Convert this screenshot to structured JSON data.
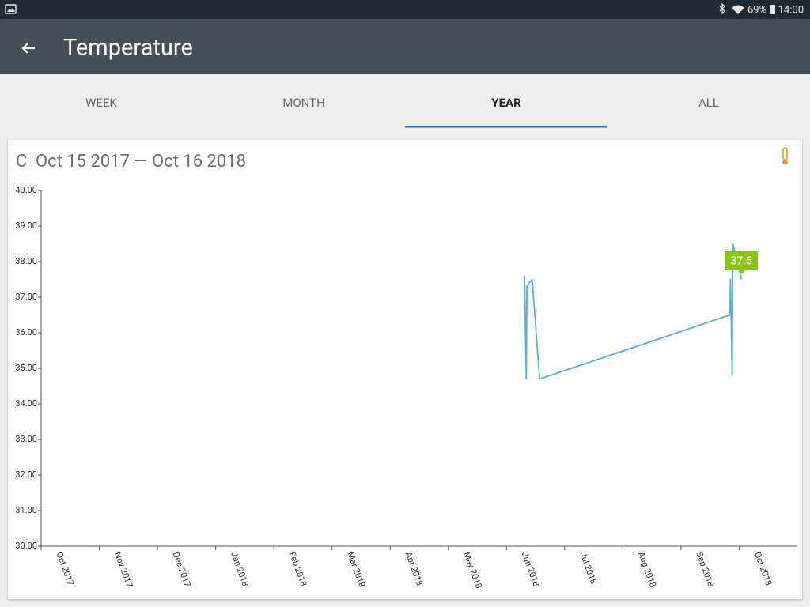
{
  "status_bar": {
    "battery": "69%",
    "time": "14:00"
  },
  "app_bar": {
    "title": "Temperature"
  },
  "tabs": [
    "WEEK",
    "MONTH",
    "YEAR",
    "ALL"
  ],
  "selected_tab": 2,
  "card": {
    "unit": "C",
    "range": "Oct 15 2017 — Oct 16 2018"
  },
  "tooltip": 37.5,
  "chart_data": {
    "type": "line",
    "x": [
      8.31,
      8.34,
      8.35,
      8.39,
      8.44,
      8.57,
      11.84,
      11.85,
      11.88,
      11.89,
      11.93,
      12.04
    ],
    "series": [
      {
        "color": "#5aafd6",
        "values": [
          37.6,
          34.7,
          37.3,
          37.4,
          37.5,
          34.7,
          36.5,
          37.5,
          34.8,
          38.5,
          38.25,
          37.5
        ]
      }
    ],
    "xlim": [
      0,
      13
    ],
    "xticks": [
      {
        "value": 0,
        "label": "Oct 2017"
      },
      {
        "value": 1,
        "label": "Nov 2017"
      },
      {
        "value": 2,
        "label": "Dec 2017"
      },
      {
        "value": 3,
        "label": "Jan 2018"
      },
      {
        "value": 4,
        "label": "Feb 2018"
      },
      {
        "value": 5,
        "label": "Mar 2018"
      },
      {
        "value": 6,
        "label": "Apr 2018"
      },
      {
        "value": 7,
        "label": "May 2018"
      },
      {
        "value": 8,
        "label": "Jun 2018"
      },
      {
        "value": 9,
        "label": "Jul 2018"
      },
      {
        "value": 10,
        "label": "Aug 2018"
      },
      {
        "value": 11,
        "label": "Sep 2018"
      },
      {
        "value": 12,
        "label": "Oct 2018"
      }
    ],
    "ylim": [
      30,
      40
    ],
    "yticks": [
      {
        "value": 30,
        "label": "30.00"
      },
      {
        "value": 31,
        "label": "31.00"
      },
      {
        "value": 32,
        "label": "32.00"
      },
      {
        "value": 33,
        "label": "33.00"
      },
      {
        "value": 34,
        "label": "34.00"
      },
      {
        "value": 35,
        "label": "35.00"
      },
      {
        "value": 36,
        "label": "36.00"
      },
      {
        "value": 37,
        "label": "37.00"
      },
      {
        "value": 38,
        "label": "38.00"
      },
      {
        "value": 39,
        "label": "39.00"
      },
      {
        "value": 40,
        "label": "40.00"
      }
    ]
  }
}
